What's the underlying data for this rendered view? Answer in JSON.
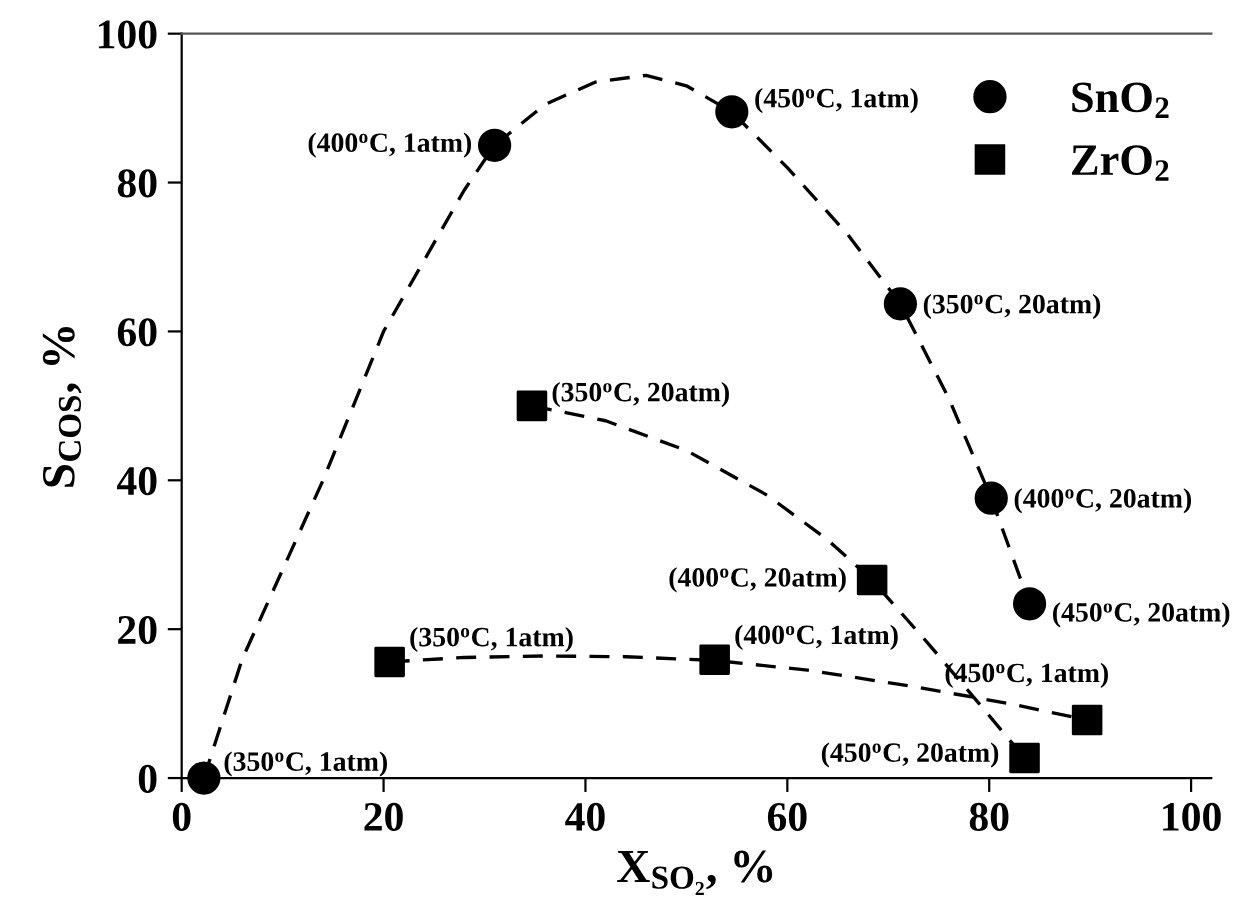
{
  "chart_data": {
    "type": "scatter",
    "xlabel": "X$_{SO₂}$, %",
    "ylabel": "S$_{COS}$, %",
    "xlim": [
      0,
      102
    ],
    "ylim": [
      0,
      100
    ],
    "xticks": [
      0,
      20,
      40,
      60,
      80,
      100
    ],
    "yticks": [
      0,
      20,
      40,
      60,
      80,
      100
    ],
    "grid": false,
    "legend": "top right",
    "series": [
      {
        "type": "line",
        "color": "#000000",
        "marker": "none",
        "line_style": "dashed",
        "x": [
          2.2,
          6,
          10,
          14,
          20,
          28,
          31,
          36,
          41,
          46,
          50,
          54.5,
          60,
          66,
          71.2,
          76,
          80.2,
          84
        ],
        "values": [
          0,
          16,
          28,
          40,
          60,
          79,
          85,
          90.5,
          93.5,
          94.4,
          93,
          89.5,
          82,
          73,
          63.7,
          51,
          37.6,
          23.4
        ]
      },
      {
        "type": "line",
        "color": "#000000",
        "marker": "none",
        "line_style": "dashed",
        "x": [
          34.7,
          42,
          50,
          58,
          64,
          68.4,
          74,
          79,
          83.5
        ],
        "values": [
          50,
          48,
          44,
          38,
          32,
          26.6,
          18,
          10,
          2.7
        ]
      },
      {
        "type": "line",
        "color": "#000000",
        "marker": "none",
        "line_style": "dashed",
        "x": [
          20.6,
          28,
          36,
          44,
          52.8,
          62,
          72,
          82,
          89.7
        ],
        "values": [
          15.6,
          16.2,
          16.4,
          16.3,
          15.8,
          14.5,
          12.4,
          10,
          7.8
        ]
      },
      {
        "name": "SnO$_{2}$",
        "color": "#000000",
        "marker": "circle",
        "x": [
          2.2,
          31,
          54.5,
          71.2,
          80.2,
          84
        ],
        "values": [
          0,
          85,
          89.5,
          63.7,
          37.6,
          23.4
        ]
      },
      {
        "name": "ZrO$_{2}$",
        "color": "#000000",
        "marker": "square",
        "x": [
          34.7,
          68.4,
          83.5,
          20.6,
          52.8,
          89.7
        ],
        "values": [
          50,
          26.6,
          2.7,
          15.6,
          15.9,
          7.8
        ]
      }
    ],
    "annotations": [
      {
        "text": "(350$^{o}$C, 1atm)",
        "x": 2.2,
        "y": 0
      },
      {
        "text": "(400$^{o}$C, 1atm)",
        "x": 31,
        "y": 85
      },
      {
        "text": "(450$^{o}$C, 1atm)",
        "x": 54.5,
        "y": 89.5
      },
      {
        "text": "(350$^{o}$C, 20atm)",
        "x": 71.2,
        "y": 63.7
      },
      {
        "text": "(400$^{o}$C, 20atm)",
        "x": 80.2,
        "y": 37.6
      },
      {
        "text": "(450$^{o}$C, 20atm)",
        "x": 84,
        "y": 23.4
      },
      {
        "text": "(350$^{o}$C, 20atm)",
        "x": 34.7,
        "y": 50
      },
      {
        "text": "(400$^{o}$C, 20atm)",
        "x": 68.4,
        "y": 26.6
      },
      {
        "text": "(450$^{o}$C, 20atm)",
        "x": 83.5,
        "y": 2.7
      },
      {
        "text": "(350$^{o}$C, 1atm)",
        "x": 20.6,
        "y": 15.6
      },
      {
        "text": "(400$^{o}$C, 1atm)",
        "x": 52.8,
        "y": 15.9
      },
      {
        "text": "(450$^{o}$C, 1atm)",
        "x": 89.7,
        "y": 7.8
      }
    ]
  }
}
